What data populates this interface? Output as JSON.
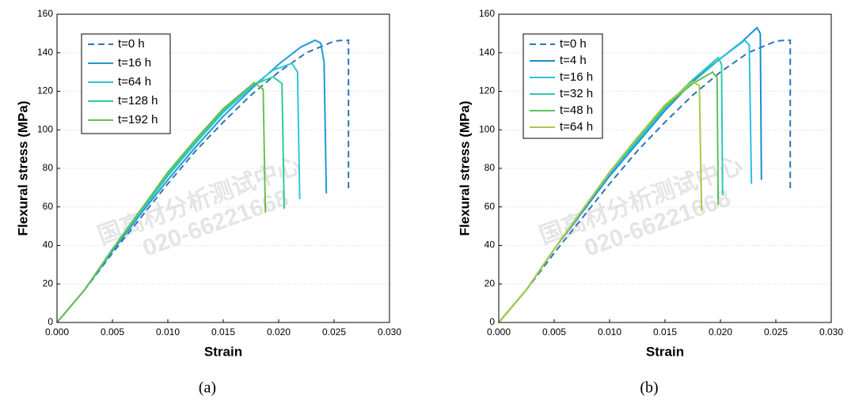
{
  "chart_data": [
    {
      "type": "line",
      "caption": "(a)",
      "x_label": "Strain",
      "y_label": "Flexural stress (MPa)",
      "watermark": [
        "国高材分析测试中心",
        "020-66221668"
      ],
      "xlim": [
        0,
        0.03
      ],
      "ylim": [
        0,
        160
      ],
      "grid": true,
      "legend": "upper left",
      "xticks": [
        {
          "value": 0,
          "label": "0.000"
        },
        {
          "value": 0.005,
          "label": "0.005"
        },
        {
          "value": 0.01,
          "label": "0.010"
        },
        {
          "value": 0.015,
          "label": "0.015"
        },
        {
          "value": 0.02,
          "label": "0.020"
        },
        {
          "value": 0.025,
          "label": "0.025"
        },
        {
          "value": 0.03,
          "label": "0.030"
        }
      ],
      "yticks": [
        0,
        20,
        40,
        60,
        80,
        100,
        120,
        140,
        160
      ],
      "series": [
        {
          "name": "t=0 h",
          "color": "#2e75b6",
          "dashed": true,
          "x": [
            0,
            0.0025,
            0.005,
            0.0075,
            0.01,
            0.0125,
            0.015,
            0.0175,
            0.02,
            0.0225,
            0.025,
            0.0258,
            0.0263,
            0.0263
          ],
          "values": [
            0,
            17,
            36,
            54,
            72,
            89,
            104,
            118,
            130,
            140,
            146,
            146.5,
            146.5,
            68
          ]
        },
        {
          "name": "t=16 h",
          "color": "#1e9bd7",
          "x": [
            0,
            0.0025,
            0.005,
            0.0075,
            0.01,
            0.0125,
            0.015,
            0.0175,
            0.02,
            0.022,
            0.0233,
            0.0238,
            0.0241,
            0.0243
          ],
          "values": [
            0,
            17,
            37,
            56,
            74,
            91,
            107,
            121,
            134,
            143,
            146.5,
            145,
            135,
            67
          ]
        },
        {
          "name": "t=64 h",
          "color": "#2fc7d6",
          "x": [
            0,
            0.0025,
            0.005,
            0.0075,
            0.01,
            0.0125,
            0.015,
            0.0175,
            0.0195,
            0.0212,
            0.0217,
            0.0219
          ],
          "values": [
            0,
            17,
            38,
            57,
            76,
            93,
            109,
            122,
            131,
            134.5,
            130,
            64
          ]
        },
        {
          "name": "t=128 h",
          "color": "#2fc99c",
          "x": [
            0,
            0.0025,
            0.005,
            0.0075,
            0.01,
            0.0125,
            0.015,
            0.0175,
            0.0195,
            0.0203,
            0.0205
          ],
          "values": [
            0,
            17,
            38,
            58,
            77,
            94,
            110,
            123,
            127.5,
            124,
            59
          ]
        },
        {
          "name": "t=192 h",
          "color": "#6cc04a",
          "x": [
            0,
            0.0025,
            0.005,
            0.0075,
            0.01,
            0.0125,
            0.015,
            0.0178,
            0.0186,
            0.0188
          ],
          "values": [
            0,
            17,
            38,
            58,
            78,
            95,
            111,
            124.5,
            121,
            57
          ]
        }
      ]
    },
    {
      "type": "line",
      "caption": "(b)",
      "x_label": "Strain",
      "y_label": "Flexural stress (MPa)",
      "watermark": [
        "国高材分析测试中心",
        "020-66221668"
      ],
      "xlim": [
        0,
        0.03
      ],
      "ylim": [
        0,
        160
      ],
      "grid": true,
      "legend": "upper left",
      "xticks": [
        {
          "value": 0,
          "label": "0.000"
        },
        {
          "value": 0.005,
          "label": "0.005"
        },
        {
          "value": 0.01,
          "label": "0.010"
        },
        {
          "value": 0.015,
          "label": "0.015"
        },
        {
          "value": 0.02,
          "label": "0.020"
        },
        {
          "value": 0.025,
          "label": "0.025"
        },
        {
          "value": 0.03,
          "label": "0.030"
        }
      ],
      "yticks": [
        0,
        20,
        40,
        60,
        80,
        100,
        120,
        140,
        160
      ],
      "series": [
        {
          "name": "t=0 h",
          "color": "#2e75b6",
          "dashed": true,
          "x": [
            0,
            0.0025,
            0.005,
            0.0075,
            0.01,
            0.0125,
            0.015,
            0.0175,
            0.02,
            0.0225,
            0.025,
            0.0258,
            0.0263,
            0.0263
          ],
          "values": [
            0,
            17,
            36,
            54,
            72,
            89,
            104,
            118,
            130,
            140,
            146,
            146.5,
            146.5,
            68
          ]
        },
        {
          "name": "t=4 h",
          "color": "#1a8fd0",
          "x": [
            0,
            0.0025,
            0.005,
            0.0075,
            0.01,
            0.0125,
            0.015,
            0.0175,
            0.02,
            0.022,
            0.0233,
            0.0236,
            0.0237
          ],
          "values": [
            0,
            17,
            38,
            57,
            76,
            93,
            110,
            125,
            137,
            146,
            153,
            150,
            74
          ]
        },
        {
          "name": "t=16 h",
          "color": "#2bbfe0",
          "x": [
            0,
            0.0025,
            0.005,
            0.0075,
            0.01,
            0.0125,
            0.015,
            0.0175,
            0.02,
            0.0222,
            0.0226,
            0.0228
          ],
          "values": [
            0,
            17,
            38,
            58,
            77,
            94,
            111,
            126,
            137,
            146.5,
            144,
            72
          ]
        },
        {
          "name": "t=32 h",
          "color": "#2ec9b0",
          "x": [
            0,
            0.0025,
            0.005,
            0.0075,
            0.01,
            0.0125,
            0.015,
            0.0175,
            0.0198,
            0.0201,
            0.0202
          ],
          "values": [
            0,
            17,
            38,
            58,
            78,
            95,
            112,
            126,
            137.5,
            134,
            66
          ]
        },
        {
          "name": "t=48 h",
          "color": "#5cc25a",
          "x": [
            0,
            0.0025,
            0.005,
            0.0075,
            0.01,
            0.0125,
            0.015,
            0.0175,
            0.0193,
            0.0197,
            0.0198
          ],
          "values": [
            0,
            17,
            38,
            58,
            78,
            96,
            112,
            124,
            130,
            127,
            61
          ]
        },
        {
          "name": "t=64 h",
          "color": "#a8c84a",
          "x": [
            0,
            0.0025,
            0.005,
            0.0075,
            0.01,
            0.0125,
            0.015,
            0.0175,
            0.0181,
            0.0183
          ],
          "values": [
            0,
            17,
            38,
            58,
            78,
            96,
            113,
            125,
            123,
            58
          ]
        }
      ]
    }
  ]
}
